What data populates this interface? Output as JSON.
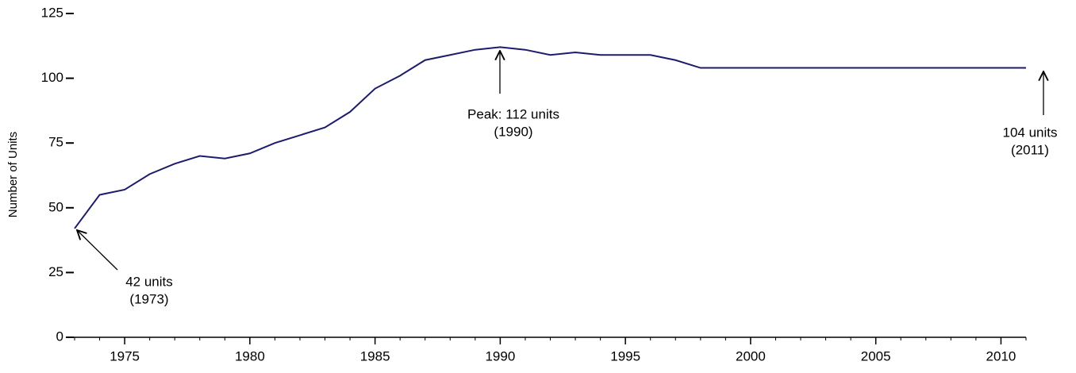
{
  "chart_data": {
    "type": "line",
    "y_label": "Number of Units",
    "x": [
      1973,
      1974,
      1975,
      1976,
      1977,
      1978,
      1979,
      1980,
      1981,
      1982,
      1983,
      1984,
      1985,
      1986,
      1987,
      1988,
      1989,
      1990,
      1991,
      1992,
      1993,
      1994,
      1995,
      1996,
      1997,
      1998,
      1999,
      2000,
      2001,
      2002,
      2003,
      2004,
      2005,
      2006,
      2007,
      2008,
      2009,
      2010,
      2011
    ],
    "series": [
      {
        "color": "#1c1c6b",
        "values": [
          42,
          55,
          57,
          63,
          67,
          70,
          69,
          71,
          75,
          78,
          81,
          87,
          96,
          101,
          107,
          109,
          111,
          112,
          111,
          109,
          110,
          109,
          109,
          109,
          107,
          104,
          104,
          104,
          104,
          104,
          104,
          104,
          104,
          104,
          104,
          104,
          104,
          104,
          104
        ]
      }
    ],
    "xlim": [
      1973,
      2011
    ],
    "xticks": [
      1975,
      1980,
      1985,
      1990,
      1995,
      2000,
      2005,
      2010
    ],
    "xminor_step": 1,
    "ylim": [
      0,
      125
    ],
    "yticks": [
      0,
      25,
      50,
      75,
      100,
      125
    ],
    "annotations": [
      {
        "x": 1973,
        "y": 42,
        "lines": [
          "42 units",
          "(1973)"
        ]
      },
      {
        "x": 1990,
        "y": 112,
        "lines": [
          "Peak:  112 units",
          "(1990)"
        ]
      },
      {
        "x": 2011,
        "y": 104,
        "lines": [
          "104 units",
          "(2011)"
        ]
      }
    ]
  }
}
